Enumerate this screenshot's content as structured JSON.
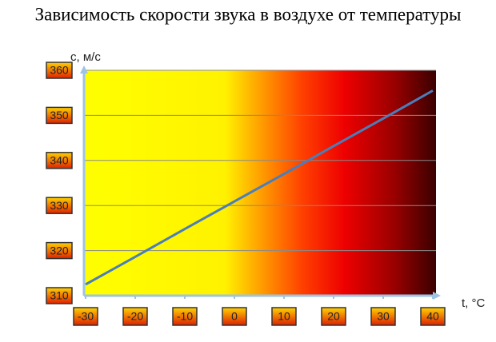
{
  "chart_data": {
    "type": "line",
    "title": "Зависимость скорости звука в воздухе от температуры",
    "x_label": "t, °C",
    "y_label": "c, м/с",
    "x": [
      -30,
      -20,
      -10,
      0,
      10,
      20,
      30,
      40
    ],
    "series": [
      {
        "color": "#4a7ebb",
        "values": [
          312.5,
          318.6,
          324.8,
          330.9,
          337.0,
          343.2,
          349.3,
          355.5
        ]
      }
    ],
    "xlim": [
      -30,
      40
    ],
    "xticks": [
      -30,
      -20,
      -10,
      0,
      10,
      20,
      30,
      40
    ],
    "ylim": [
      310,
      360
    ],
    "yticks": [
      310,
      320,
      330,
      340,
      350,
      360
    ],
    "grid": true
  }
}
